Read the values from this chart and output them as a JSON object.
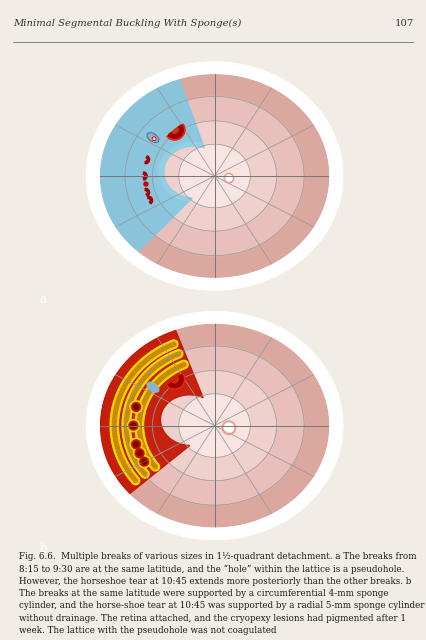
{
  "page_bg": "#f2ede4",
  "box_bg": "#111111",
  "header_text": "Minimal Segmental Buckling With Sponge(s)",
  "header_page": "107",
  "label_a": "a",
  "label_b": "b",
  "outer_white": "#e8e0d8",
  "zone1_color": "#dba8a0",
  "zone2_color": "#e8bfba",
  "zone3_color": "#f0d0cc",
  "zone4_color": "#f8e4e0",
  "grid_color": "#999999",
  "blue_detach": "#7ec8e3",
  "blue_detach2": "#9ad4e8",
  "red_detach": "#c41200",
  "yellow_sponge": "#f5d800",
  "horseshoe_red": "#cc0000",
  "horseshoe_dark": "#8b0000",
  "fovea_color": "#e8a090",
  "caption_bold": "Fig. 6.6.",
  "caption_rest": "  Multiple breaks of various sizes in 1¹⁄₂-quadrant detachment. a The breaks from 8:15 to 9:30 are at the same latitude, and the “hole” within the lattice is a pseudohole. However, the horseshoe tear at 10:45 extends more posteriorly than the other breaks. b The breaks at the same latitude were supported by a ",
  "caption_italic1": "circumferential 4-mm sponge cylinder",
  "caption_mid": ", and the horseshoe tear at 10:45 was supported by a ",
  "caption_italic2": "radial 5-mm sponge cylinder",
  "caption_end": " without drainage. The retina attached, and the cryopexy lesions had pigmented after 1 week. The lattice with the pseudohole was not coagulated"
}
